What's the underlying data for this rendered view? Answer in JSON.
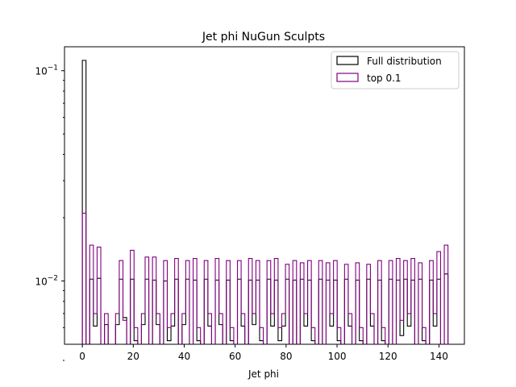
{
  "chart_data": {
    "type": "histogram-step",
    "title": "Jet phi NuGun Sculpts",
    "xlabel": "Jet phi",
    "ylabel": "",
    "xlim": [
      -7,
      150
    ],
    "ylim": [
      0.005,
      0.13
    ],
    "yscale": "log",
    "grid": false,
    "legend_placement": "top-right",
    "xticks": [
      0,
      20,
      40,
      60,
      80,
      100,
      120,
      140
    ],
    "yticks": [
      {
        "value": 0.01,
        "label": "10",
        "exp": "−2"
      },
      {
        "value": 0.1,
        "label": "10",
        "exp": "−1"
      }
    ],
    "bin_edges": [
      0,
      1.45,
      2.9,
      4.35,
      5.8,
      7.25,
      8.7,
      10.15,
      11.6,
      13.05,
      14.5,
      15.95,
      17.4,
      18.85,
      20.3,
      21.75,
      23.2,
      24.65,
      26.1,
      27.55,
      29,
      30.45,
      31.9,
      33.35,
      34.8,
      36.25,
      37.7,
      39.15,
      40.6,
      42.05,
      43.5,
      44.95,
      46.4,
      47.85,
      49.3,
      50.75,
      52.2,
      53.65,
      55.1,
      56.55,
      58,
      59.45,
      60.9,
      62.35,
      63.8,
      65.25,
      66.7,
      68.15,
      69.6,
      71.05,
      72.5,
      73.95,
      75.4,
      76.85,
      78.3,
      79.75,
      81.2,
      82.65,
      84.1,
      85.55,
      87,
      88.45,
      89.9,
      91.35,
      92.8,
      94.25,
      95.7,
      97.15,
      98.6,
      100.05,
      101.5,
      102.95,
      104.4,
      105.85,
      107.3,
      108.75,
      110.2,
      111.65,
      113.1,
      114.55,
      116,
      117.45,
      118.9,
      120.35,
      121.8,
      123.25,
      124.7,
      126.15,
      127.6,
      129.05,
      130.5,
      131.95,
      133.4,
      134.85,
      136.3,
      137.75,
      139.2,
      140.65,
      142.1,
      143.55
    ],
    "series": [
      {
        "name": "Full distribution",
        "color": "#000000",
        "values": [
          0.112,
          0,
          0.0102,
          0.0061,
          0.0103,
          0,
          0.0062,
          0,
          0,
          0.0062,
          0.0102,
          0.0067,
          0,
          0.0102,
          0.0052,
          0,
          0.0062,
          0.0102,
          0,
          0.0101,
          0.0062,
          0,
          0.01,
          0.0052,
          0.0061,
          0.0102,
          0,
          0.0062,
          0.0102,
          0,
          0.0101,
          0.0052,
          0,
          0.0102,
          0.0061,
          0,
          0.0101,
          0.0062,
          0,
          0.0101,
          0.0052,
          0,
          0.0102,
          0.0061,
          0,
          0.0101,
          0.0062,
          0.0101,
          0.0052,
          0,
          0.0102,
          0.0061,
          0.0101,
          0.0052,
          0.0061,
          0.0102,
          0,
          0.0101,
          0,
          0.0102,
          0.0061,
          0.0101,
          0.0052,
          0,
          0.0102,
          0,
          0.0101,
          0.0061,
          0.0101,
          0.0052,
          0,
          0.0102,
          0.0061,
          0,
          0.0101,
          0.0052,
          0,
          0.0102,
          0.0061,
          0,
          0.0101,
          0.0052,
          0,
          0.0102,
          0,
          0.0101,
          0.0055,
          0.0102,
          0.0061,
          0.0101,
          0,
          0.0102,
          0.0052,
          0,
          0.0101,
          0.0061,
          0.0102,
          0,
          0.0108
        ],
        "tops": [
          0.021,
          0,
          0.0148,
          0.007,
          0.0145,
          0,
          0.007,
          0,
          0,
          0.007,
          0.0125,
          0.0065,
          0,
          0.014,
          0.006,
          0,
          0.007,
          0.013,
          0,
          0.013,
          0.007,
          0,
          0.0125,
          0.006,
          0.007,
          0.0128,
          0,
          0.007,
          0.0125,
          0,
          0.0128,
          0.006,
          0,
          0.0125,
          0.007,
          0,
          0.0128,
          0.007,
          0,
          0.0125,
          0.006,
          0,
          0.0125,
          0.007,
          0,
          0.0128,
          0.007,
          0.0125,
          0.006,
          0,
          0.0125,
          0.007,
          0.0128,
          0.006,
          0.007,
          0.012,
          0,
          0.0125,
          0,
          0.0122,
          0.007,
          0.0125,
          0.006,
          0,
          0.0125,
          0,
          0.0122,
          0.007,
          0.0125,
          0.006,
          0,
          0.012,
          0.007,
          0,
          0.0122,
          0.006,
          0,
          0.012,
          0.007,
          0,
          0.0125,
          0.006,
          0,
          0.0125,
          0,
          0.0128,
          0.0065,
          0.0125,
          0.007,
          0.0128,
          0,
          0.0122,
          0.006,
          0,
          0.0125,
          0.007,
          0.0138,
          0,
          0.0148
        ]
      },
      {
        "name": "top 0.1",
        "color": "#800080"
      }
    ]
  }
}
